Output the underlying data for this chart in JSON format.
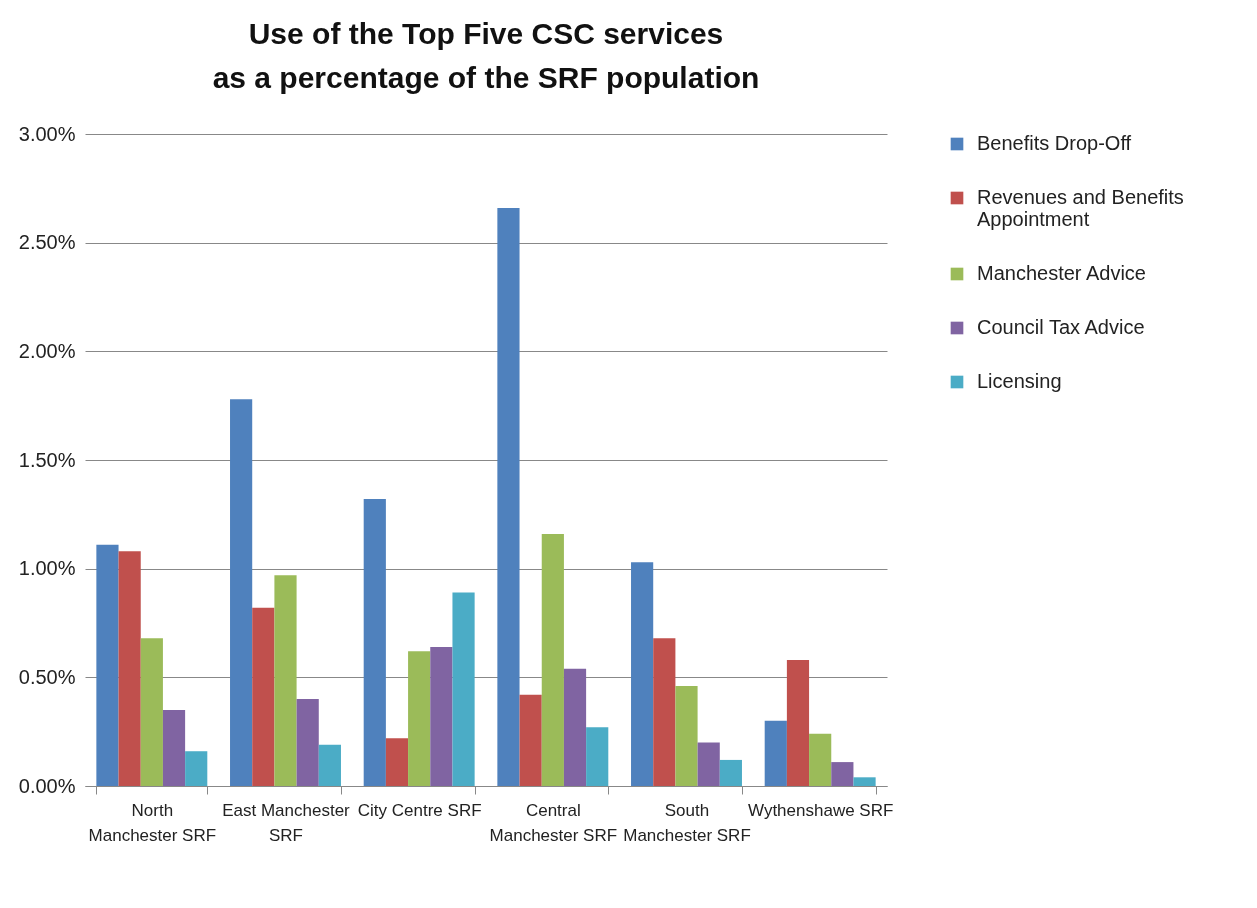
{
  "chart_data": {
    "type": "bar",
    "title": "Use of the Top Five CSC services\nas a percentage of the SRF population",
    "categories": [
      "North Manchester SRF",
      "East Manchester SRF",
      "City Centre SRF",
      "Central Manchester SRF",
      "South Manchester SRF",
      "Wythenshawe SRF"
    ],
    "series": [
      {
        "name": "Benefits Drop-Off",
        "color": "#4f81bd",
        "values": [
          1.11,
          1.78,
          1.32,
          2.66,
          1.03,
          0.3
        ]
      },
      {
        "name": "Revenues and Benefits Appointment",
        "color": "#c0504d",
        "values": [
          1.08,
          0.82,
          0.22,
          0.42,
          0.68,
          0.58
        ]
      },
      {
        "name": "Manchester Advice",
        "color": "#9bbb59",
        "values": [
          0.68,
          0.97,
          0.62,
          1.16,
          0.46,
          0.24
        ]
      },
      {
        "name": "Council Tax Advice",
        "color": "#8064a2",
        "values": [
          0.35,
          0.4,
          0.64,
          0.54,
          0.2,
          0.11
        ]
      },
      {
        "name": "Licensing",
        "color": "#4bacc6",
        "values": [
          0.16,
          0.19,
          0.89,
          0.27,
          0.12,
          0.04
        ]
      }
    ],
    "ylim": [
      0,
      3
    ],
    "yticks": [
      {
        "value": 0,
        "label": "0.00%"
      },
      {
        "value": 0.5,
        "label": "0.50%"
      },
      {
        "value": 1,
        "label": "1.00%"
      },
      {
        "value": 1.5,
        "label": "1.50%"
      },
      {
        "value": 2,
        "label": "2.00%"
      },
      {
        "value": 2.5,
        "label": "2.50%"
      },
      {
        "value": 3,
        "label": "3.00%"
      }
    ],
    "grid": "y",
    "legend": "right"
  }
}
